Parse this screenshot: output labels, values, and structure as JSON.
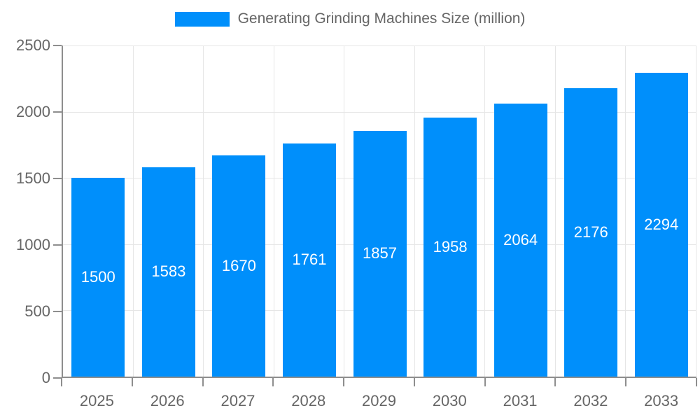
{
  "chart_data": {
    "type": "bar",
    "title": "Generating Grinding Machines Size (million)",
    "categories": [
      "2025",
      "2026",
      "2027",
      "2028",
      "2029",
      "2030",
      "2031",
      "2032",
      "2033"
    ],
    "series": [
      {
        "name": "Generating Grinding Machines Size (million)",
        "values": [
          1500,
          1583,
          1670,
          1761,
          1857,
          1958,
          2064,
          2176,
          2294
        ]
      }
    ],
    "value_labels": [
      "1500",
      "1583",
      "1670",
      "1761",
      "1857",
      "1958",
      "2064",
      "2176",
      "2294"
    ],
    "xlabel": "",
    "ylabel": "",
    "ylim": [
      0,
      2500
    ],
    "y_ticks": [
      0,
      500,
      1000,
      1500,
      2000,
      2500
    ],
    "grid": true,
    "legend_position": "top-center"
  },
  "legend": {
    "label": "Generating Grinding Machines Size (million)"
  },
  "colors": {
    "bar": "#008FFB",
    "grid": "#e6e6e6",
    "axis": "#8e8e8e",
    "text": "#666666",
    "value_label": "#ffffff",
    "background": "#ffffff"
  }
}
